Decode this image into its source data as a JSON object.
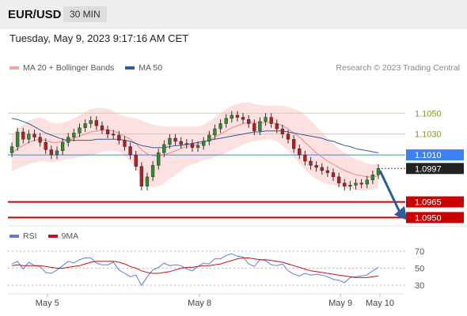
{
  "header": {
    "pair": "EUR/USD",
    "timeframe": "30 MIN"
  },
  "datetime": "Tuesday, May 9, 2023 9:17:16 AM CET",
  "credit": "Research © 2023 Trading Central",
  "colors": {
    "bollinger": "#f4a3a3",
    "ma50": "#2f5d99",
    "rsi": "#5b7fd6",
    "rsi_ma": "#cc1111",
    "resistance": "#c5d79a",
    "pivot": "#3b82f6",
    "support": "#cc0000",
    "price_tag": "#222222",
    "arrow": "#2f5d99"
  },
  "chart_data": [
    {
      "type": "candlestick",
      "legend": [
        {
          "name": "MA 20 + Bollinger Bands",
          "color": "#f4a3a3"
        },
        {
          "name": "MA 50",
          "color": "#2f5d99"
        }
      ],
      "x_ticks": [
        "May 5",
        "May 8",
        "May 9",
        "May 10"
      ],
      "ylim": [
        1.0945,
        1.1085
      ],
      "last_price": 1.0997,
      "levels": [
        {
          "label": "1.1050",
          "value": 1.105,
          "kind": "resistance"
        },
        {
          "label": "1.1030",
          "value": 1.103,
          "kind": "resistance"
        },
        {
          "label": "1.1010",
          "value": 1.101,
          "kind": "pivot"
        },
        {
          "label": "1.0997",
          "value": 1.0997,
          "kind": "last"
        },
        {
          "label": "1.0965",
          "value": 1.0965,
          "kind": "support"
        },
        {
          "label": "1.0950",
          "value": 1.095,
          "kind": "support"
        }
      ],
      "close": [
        1.1018,
        1.1032,
        1.1025,
        1.103,
        1.1027,
        1.1022,
        1.1015,
        1.101,
        1.1014,
        1.1022,
        1.1027,
        1.1031,
        1.1036,
        1.104,
        1.1043,
        1.1038,
        1.1034,
        1.103,
        1.1029,
        1.1024,
        1.1018,
        1.101,
        1.0999,
        1.098,
        1.0989,
        1.1,
        1.1012,
        1.102,
        1.1026,
        1.1023,
        1.102,
        1.1021,
        1.1017,
        1.1019,
        1.1023,
        1.1029,
        1.1035,
        1.104,
        1.1045,
        1.1048,
        1.1046,
        1.1044,
        1.104,
        1.1033,
        1.1042,
        1.1046,
        1.104,
        1.1035,
        1.103,
        1.1025,
        1.1016,
        1.101,
        1.1004,
        1.1,
        1.0998,
        1.0995,
        1.0993,
        1.0989,
        1.0983,
        1.098,
        1.0981,
        1.0983,
        1.0982,
        1.0986,
        1.0991,
        1.0997
      ],
      "ma20": [
        1.1012,
        1.1016,
        1.1019,
        1.1022,
        1.1024,
        1.1025,
        1.1024,
        1.1022,
        1.1022,
        1.1023,
        1.1024,
        1.1026,
        1.1028,
        1.103,
        1.1032,
        1.1033,
        1.1034,
        1.1034,
        1.1033,
        1.1031,
        1.1028,
        1.1025,
        1.1021,
        1.1015,
        1.1011,
        1.1009,
        1.1009,
        1.101,
        1.1012,
        1.1014,
        1.1016,
        1.1018,
        1.1019,
        1.102,
        1.1022,
        1.1024,
        1.1027,
        1.103,
        1.1033,
        1.1036,
        1.1038,
        1.104,
        1.1041,
        1.1041,
        1.1041,
        1.1041,
        1.1041,
        1.104,
        1.1038,
        1.1035,
        1.1031,
        1.1027,
        1.1022,
        1.1017,
        1.1012,
        1.1008,
        1.1004,
        1.1001,
        1.0998,
        1.0995,
        1.0993,
        1.0991,
        1.099,
        1.0989,
        1.0989,
        1.099
      ],
      "bb_width": [
        0.0018,
        0.0019,
        0.002,
        0.0021,
        0.0021,
        0.0021,
        0.002,
        0.0019,
        0.0018,
        0.0018,
        0.0018,
        0.0019,
        0.002,
        0.0021,
        0.0022,
        0.0022,
        0.0021,
        0.002,
        0.0019,
        0.0018,
        0.0019,
        0.0021,
        0.0024,
        0.0028,
        0.003,
        0.003,
        0.0029,
        0.0027,
        0.0025,
        0.0023,
        0.0021,
        0.0019,
        0.0018,
        0.0017,
        0.0017,
        0.0018,
        0.0019,
        0.002,
        0.0021,
        0.0021,
        0.0021,
        0.002,
        0.0019,
        0.0018,
        0.0017,
        0.0016,
        0.0016,
        0.0017,
        0.0019,
        0.0021,
        0.0023,
        0.0025,
        0.0026,
        0.0026,
        0.0025,
        0.0024,
        0.0022,
        0.002,
        0.0018,
        0.0017,
        0.0016,
        0.0015,
        0.0014,
        0.0013,
        0.0012,
        0.0012
      ],
      "ma50": [
        1.1045,
        1.1044,
        1.1042,
        1.104,
        1.1037,
        1.1034,
        1.1031,
        1.1029,
        1.1027,
        1.1025,
        1.1024,
        1.1024,
        1.1024,
        1.1024,
        1.1024,
        1.1025,
        1.1025,
        1.1025,
        1.1025,
        1.1025,
        1.1024,
        1.1023,
        1.1021,
        1.1019,
        1.1018,
        1.1017,
        1.1017,
        1.1017,
        1.1018,
        1.1019,
        1.1019,
        1.102,
        1.1021,
        1.1022,
        1.1023,
        1.1024,
        1.1025,
        1.1026,
        1.1027,
        1.1028,
        1.1029,
        1.103,
        1.1031,
        1.1032,
        1.1032,
        1.1033,
        1.1033,
        1.1033,
        1.1033,
        1.1032,
        1.1031,
        1.103,
        1.1029,
        1.1028,
        1.1027,
        1.1026,
        1.1024,
        1.1023,
        1.1021,
        1.1019,
        1.1018,
        1.1016,
        1.1015,
        1.1014,
        1.1013,
        1.1012
      ]
    },
    {
      "type": "line",
      "legend": [
        {
          "name": "RSI",
          "color": "#5b7fd6"
        },
        {
          "name": "9MA",
          "color": "#cc1111"
        }
      ],
      "ylim": [
        20,
        80
      ],
      "levels": [
        {
          "label": "70",
          "value": 70
        },
        {
          "label": "50",
          "value": 50
        },
        {
          "label": "30",
          "value": 30
        }
      ],
      "rsi": [
        55,
        58,
        49,
        57,
        53,
        52,
        45,
        44,
        48,
        53,
        58,
        56,
        60,
        62,
        62,
        56,
        54,
        54,
        57,
        48,
        44,
        40,
        42,
        30,
        40,
        48,
        51,
        56,
        53,
        54,
        53,
        49,
        47,
        52,
        56,
        55,
        61,
        61,
        65,
        67,
        64,
        63,
        55,
        52,
        60,
        59,
        54,
        53,
        55,
        47,
        43,
        41,
        44,
        42,
        43,
        42,
        40,
        37,
        36,
        33,
        39,
        40,
        41,
        42,
        47,
        51
      ],
      "rsi_ma": [
        53,
        54,
        53,
        53,
        53,
        53,
        52,
        51,
        50,
        50,
        51,
        52,
        53,
        55,
        57,
        58,
        58,
        58,
        58,
        57,
        55,
        52,
        50,
        47,
        45,
        44,
        44,
        45,
        46,
        48,
        50,
        51,
        51,
        52,
        53,
        53,
        54,
        55,
        57,
        59,
        61,
        62,
        62,
        61,
        60,
        60,
        59,
        58,
        57,
        55,
        53,
        51,
        49,
        47,
        46,
        45,
        44,
        43,
        42,
        41,
        40,
        39,
        39,
        39,
        40,
        41
      ]
    }
  ]
}
